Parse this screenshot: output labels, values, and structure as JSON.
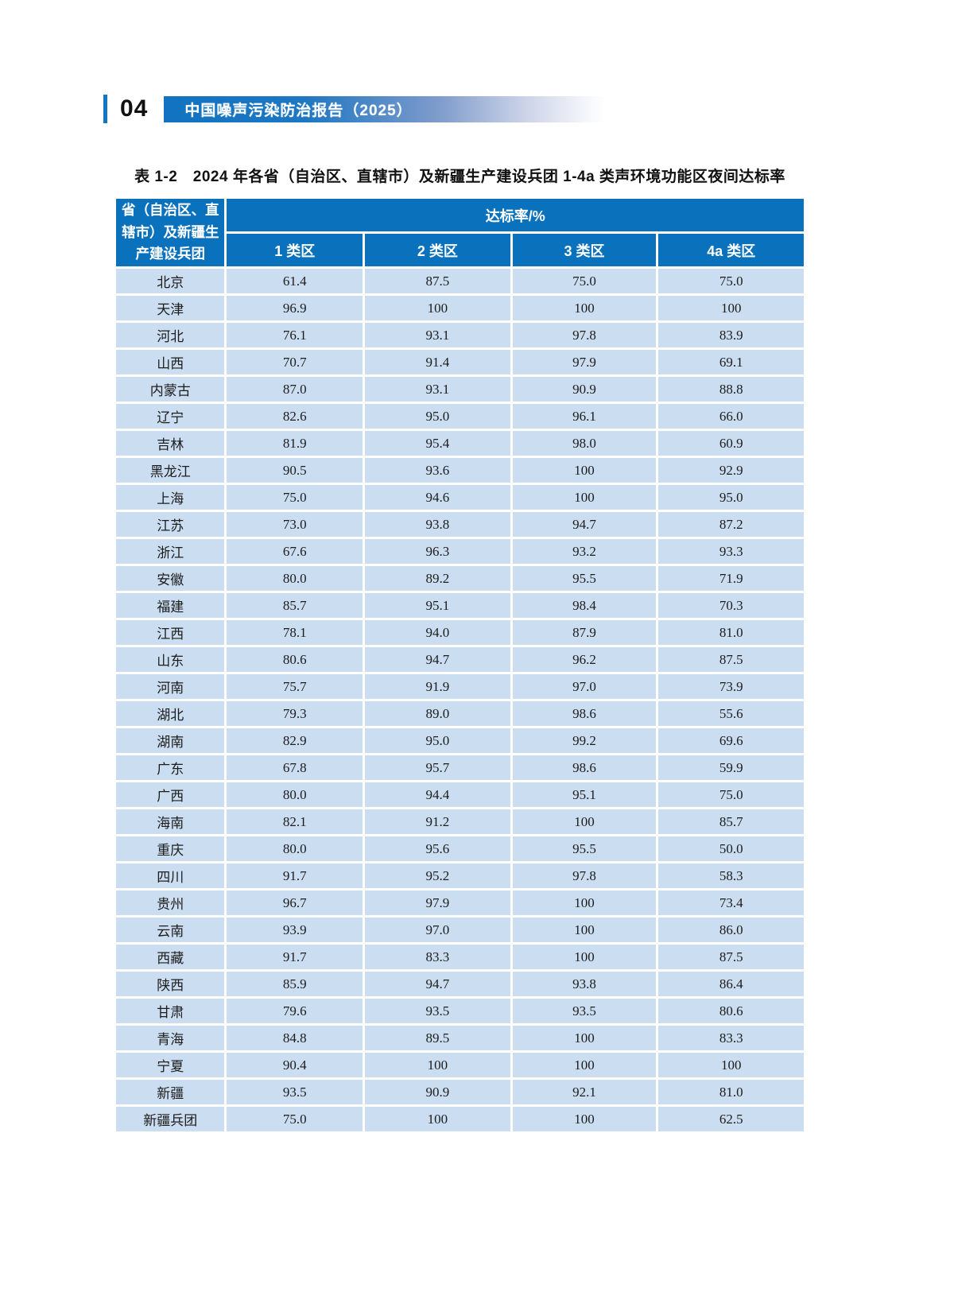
{
  "page": {
    "number": "04",
    "banner_title": "中国噪声污染防治报告（2025）"
  },
  "colors": {
    "header_blue": "#0a71bd",
    "row_blue": "#cbddf0",
    "accent_blue": "#1276c4"
  },
  "table": {
    "title": "表 1-2　2024 年各省（自治区、直辖市）及新疆生产建设兵团 1-4a 类声环境功能区夜间达标率",
    "header": {
      "region_lines": [
        "省（自治区、直",
        "辖市）及新疆生",
        "产建设兵团"
      ],
      "group": "达标率/%",
      "subcols": [
        "1 类区",
        "2 类区",
        "3 类区",
        "4a 类区"
      ]
    },
    "rows": [
      {
        "name": "北京",
        "values": [
          "61.4",
          "87.5",
          "75.0",
          "75.0"
        ]
      },
      {
        "name": "天津",
        "values": [
          "96.9",
          "100",
          "100",
          "100"
        ]
      },
      {
        "name": "河北",
        "values": [
          "76.1",
          "93.1",
          "97.8",
          "83.9"
        ]
      },
      {
        "name": "山西",
        "values": [
          "70.7",
          "91.4",
          "97.9",
          "69.1"
        ]
      },
      {
        "name": "内蒙古",
        "values": [
          "87.0",
          "93.1",
          "90.9",
          "88.8"
        ]
      },
      {
        "name": "辽宁",
        "values": [
          "82.6",
          "95.0",
          "96.1",
          "66.0"
        ]
      },
      {
        "name": "吉林",
        "values": [
          "81.9",
          "95.4",
          "98.0",
          "60.9"
        ]
      },
      {
        "name": "黑龙江",
        "values": [
          "90.5",
          "93.6",
          "100",
          "92.9"
        ]
      },
      {
        "name": "上海",
        "values": [
          "75.0",
          "94.6",
          "100",
          "95.0"
        ]
      },
      {
        "name": "江苏",
        "values": [
          "73.0",
          "93.8",
          "94.7",
          "87.2"
        ]
      },
      {
        "name": "浙江",
        "values": [
          "67.6",
          "96.3",
          "93.2",
          "93.3"
        ]
      },
      {
        "name": "安徽",
        "values": [
          "80.0",
          "89.2",
          "95.5",
          "71.9"
        ]
      },
      {
        "name": "福建",
        "values": [
          "85.7",
          "95.1",
          "98.4",
          "70.3"
        ]
      },
      {
        "name": "江西",
        "values": [
          "78.1",
          "94.0",
          "87.9",
          "81.0"
        ]
      },
      {
        "name": "山东",
        "values": [
          "80.6",
          "94.7",
          "96.2",
          "87.5"
        ]
      },
      {
        "name": "河南",
        "values": [
          "75.7",
          "91.9",
          "97.0",
          "73.9"
        ]
      },
      {
        "name": "湖北",
        "values": [
          "79.3",
          "89.0",
          "98.6",
          "55.6"
        ]
      },
      {
        "name": "湖南",
        "values": [
          "82.9",
          "95.0",
          "99.2",
          "69.6"
        ]
      },
      {
        "name": "广东",
        "values": [
          "67.8",
          "95.7",
          "98.6",
          "59.9"
        ]
      },
      {
        "name": "广西",
        "values": [
          "80.0",
          "94.4",
          "95.1",
          "75.0"
        ]
      },
      {
        "name": "海南",
        "values": [
          "82.1",
          "91.2",
          "100",
          "85.7"
        ]
      },
      {
        "name": "重庆",
        "values": [
          "80.0",
          "95.6",
          "95.5",
          "50.0"
        ]
      },
      {
        "name": "四川",
        "values": [
          "91.7",
          "95.2",
          "97.8",
          "58.3"
        ]
      },
      {
        "name": "贵州",
        "values": [
          "96.7",
          "97.9",
          "100",
          "73.4"
        ]
      },
      {
        "name": "云南",
        "values": [
          "93.9",
          "97.0",
          "100",
          "86.0"
        ]
      },
      {
        "name": "西藏",
        "values": [
          "91.7",
          "83.3",
          "100",
          "87.5"
        ]
      },
      {
        "name": "陕西",
        "values": [
          "85.9",
          "94.7",
          "93.8",
          "86.4"
        ]
      },
      {
        "name": "甘肃",
        "values": [
          "79.6",
          "93.5",
          "93.5",
          "80.6"
        ]
      },
      {
        "name": "青海",
        "values": [
          "84.8",
          "89.5",
          "100",
          "83.3"
        ]
      },
      {
        "name": "宁夏",
        "values": [
          "90.4",
          "100",
          "100",
          "100"
        ]
      },
      {
        "name": "新疆",
        "values": [
          "93.5",
          "90.9",
          "92.1",
          "81.0"
        ]
      },
      {
        "name": "新疆兵团",
        "values": [
          "75.0",
          "100",
          "100",
          "62.5"
        ]
      }
    ]
  }
}
